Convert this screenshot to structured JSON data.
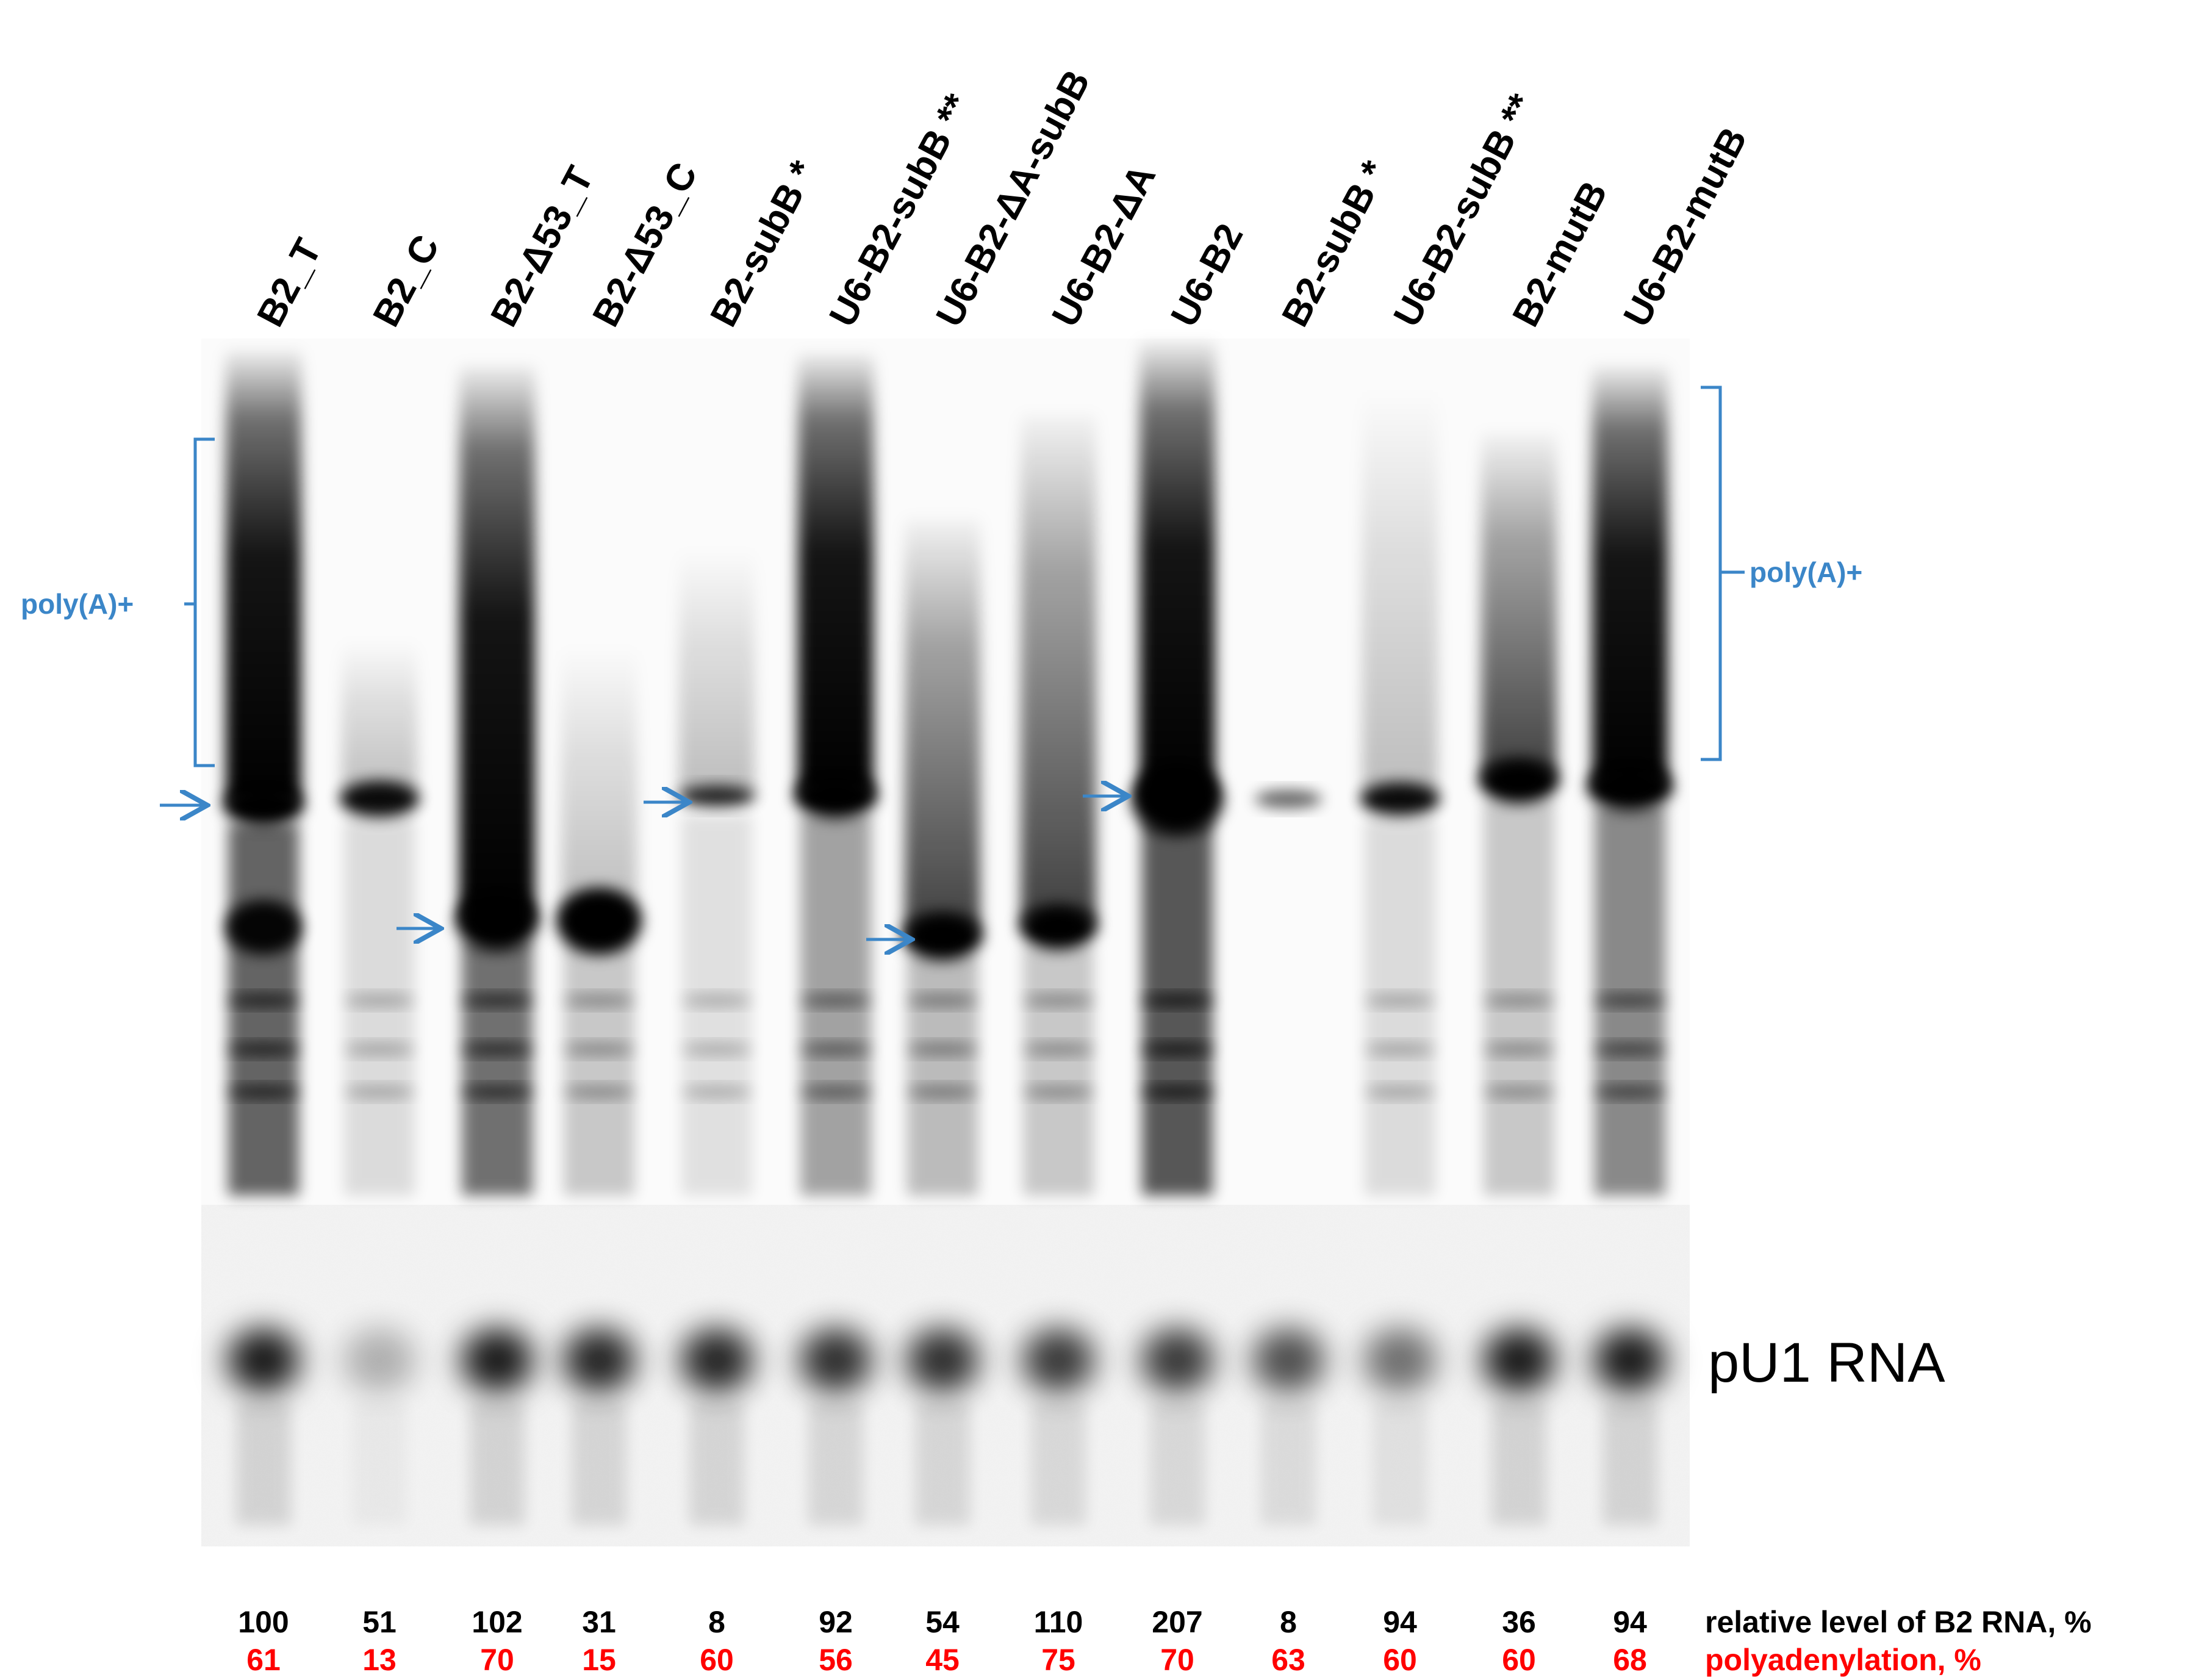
{
  "lanes": [
    {
      "label": "B2_T",
      "relative_level": "100",
      "polyadenylation": "61"
    },
    {
      "label": "B2_C",
      "relative_level": "51",
      "polyadenylation": "13"
    },
    {
      "label": "B2-Δ53_T",
      "relative_level": "102",
      "polyadenylation": "70"
    },
    {
      "label": "B2-Δ53_C",
      "relative_level": "31",
      "polyadenylation": "15"
    },
    {
      "label": "B2-subB *",
      "relative_level": "8",
      "polyadenylation": "60"
    },
    {
      "label": "U6-B2-subB **",
      "relative_level": "92",
      "polyadenylation": "56"
    },
    {
      "label": "U6-B2-ΔA-subB",
      "relative_level": "54",
      "polyadenylation": "45"
    },
    {
      "label": "U6-B2-ΔA",
      "relative_level": "110",
      "polyadenylation": "75"
    },
    {
      "label": "U6-B2",
      "relative_level": "207",
      "polyadenylation": "70"
    },
    {
      "label": "B2-subB *",
      "relative_level": "8",
      "polyadenylation": "63"
    },
    {
      "label": "U6-B2-subB **",
      "relative_level": "94",
      "polyadenylation": "60"
    },
    {
      "label": "B2-mutB",
      "relative_level": "36",
      "polyadenylation": "60"
    },
    {
      "label": "U6-B2-mutB",
      "relative_level": "94",
      "polyadenylation": "68"
    }
  ],
  "annotations": {
    "polya_left": "poly(A)+",
    "polya_right": "poly(A)+",
    "pu1_label": "pU1 RNA",
    "row_label_level": "relative level of B2 RNA,  %",
    "row_label_polya": "polyadenylation, %"
  },
  "colors": {
    "annotation_blue": "#3b86c8",
    "polya_red": "#ff0000",
    "text_black": "#000000"
  }
}
